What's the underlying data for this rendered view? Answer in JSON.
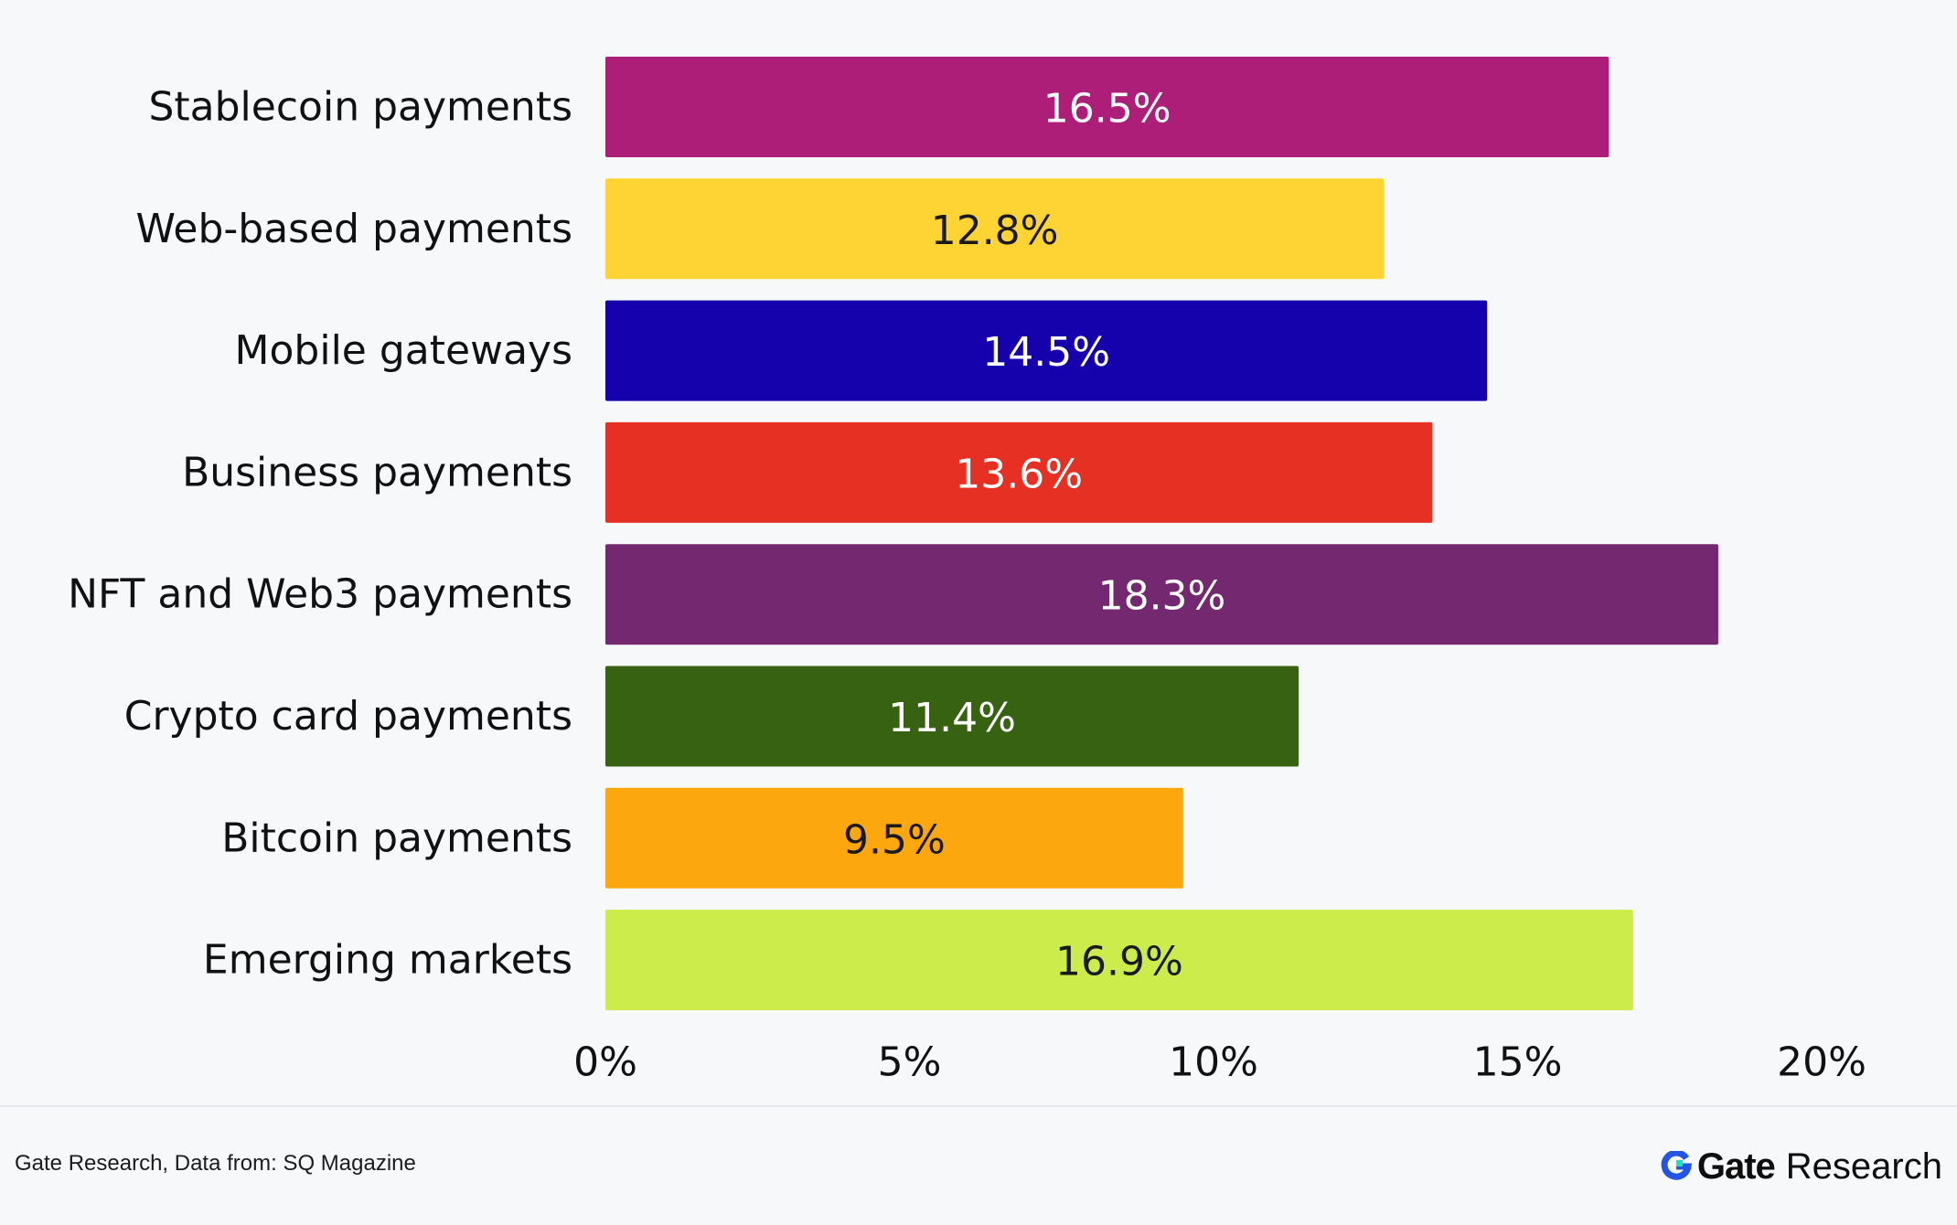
{
  "chart_data": {
    "type": "bar",
    "orientation": "horizontal",
    "categories": [
      "Stablecoin payments",
      "Web-based payments",
      "Mobile gateways",
      "Business payments",
      "NFT and Web3 payments",
      "Crypto card payments",
      "Bitcoin payments",
      "Emerging markets"
    ],
    "values": [
      16.5,
      12.8,
      14.5,
      13.6,
      18.3,
      11.4,
      9.5,
      16.9
    ],
    "value_labels": [
      "16.5%",
      "12.8%",
      "14.5%",
      "13.6%",
      "18.3%",
      "11.4%",
      "9.5%",
      "16.9%"
    ],
    "bar_colors": [
      "#ad1e78",
      "#fed434",
      "#1602ad",
      "#e73024",
      "#74286f",
      "#376212",
      "#fba70d",
      "#cbec4b"
    ],
    "label_colors": [
      "#ffffff",
      "#1a1a1a",
      "#ffffff",
      "#ffffff",
      "#ffffff",
      "#ffffff",
      "#1a1a1a",
      "#1a1a1a"
    ],
    "xlim": [
      0,
      20
    ],
    "x_ticks": [
      0,
      5,
      10,
      15,
      20
    ],
    "x_tick_labels": [
      "0%",
      "5%",
      "10%",
      "15%",
      "20%"
    ],
    "grid": false,
    "legend": "none"
  },
  "footer": {
    "source": "Gate Research, Data from: SQ Magazine",
    "brand_name": "Gate",
    "brand_sub": "Research",
    "brand_colors": [
      "#2354e6",
      "#17e3c2"
    ]
  }
}
